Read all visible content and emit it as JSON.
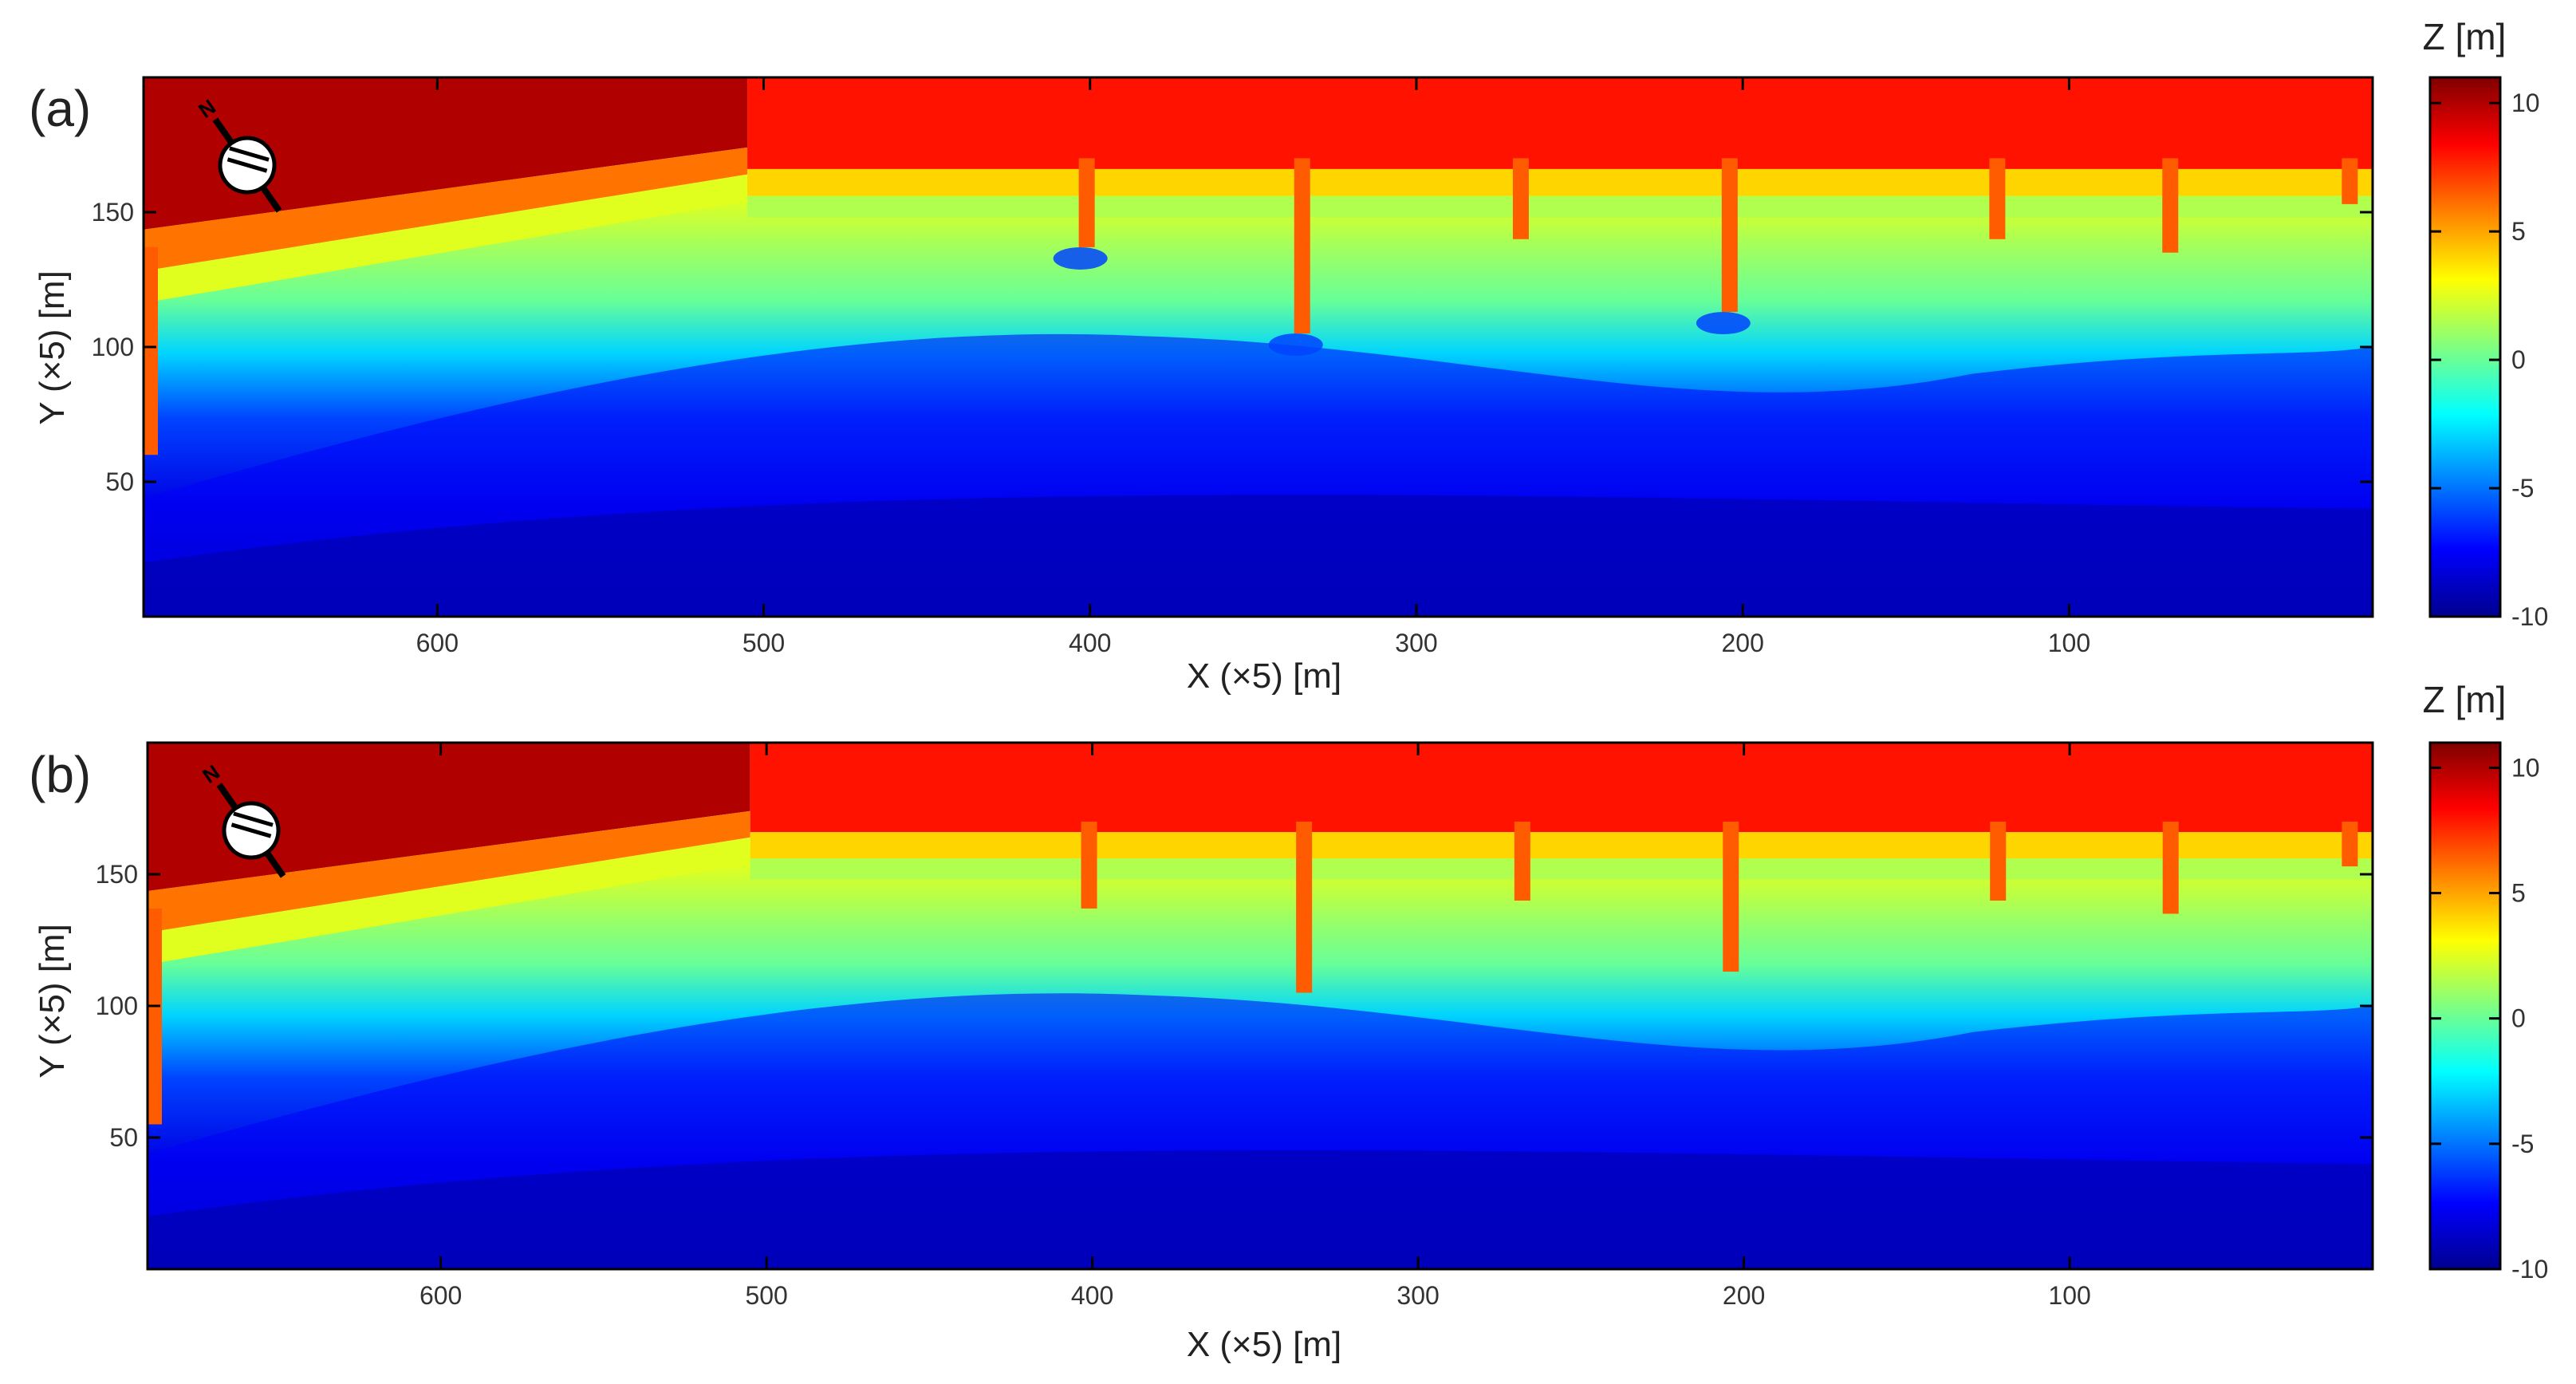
{
  "colors": {
    "colormap": [
      "#00008f",
      "#0000ff",
      "#0080ff",
      "#00ffff",
      "#80ff80",
      "#ffff00",
      "#ff8000",
      "#ff0000",
      "#800000"
    ],
    "axes": "#000000"
  },
  "icons": [
    "north-arrow-icon"
  ],
  "chart_data": [
    {
      "type": "heatmap",
      "panel_label": "(a)",
      "xlabel": "X (×5) [m]",
      "ylabel": "Y (×5) [m]",
      "xlim": [
        690,
        7
      ],
      "ylim": [
        0,
        200
      ],
      "x_reversed": true,
      "xticks": [
        600,
        500,
        400,
        300,
        200,
        100
      ],
      "yticks": [
        150,
        100,
        50
      ],
      "colorbar": {
        "title": "Z [m]",
        "range": [
          -10,
          11
        ],
        "ticks": [
          10,
          5,
          0,
          -5,
          -10
        ]
      },
      "land_boundary_x": 505,
      "land_elevation_left": 10,
      "land_elevation_right": 8,
      "groins_x_ytip": [
        [
          401,
          137
        ],
        [
          335,
          105
        ],
        [
          268,
          140
        ],
        [
          204,
          113
        ],
        [
          122,
          140
        ],
        [
          69,
          135
        ],
        [
          14,
          153
        ]
      ],
      "left_edge_structure_ytip": 60,
      "depressions_near_groins_x": [
        401,
        335,
        204
      ],
      "approx_zones_y": {
        "shoreline": 160,
        "zero_contour": 125,
        "minus5_contour": 85,
        "offshore_min": -10
      }
    },
    {
      "type": "heatmap",
      "panel_label": "(b)",
      "xlabel": "X (×5) [m]",
      "ylabel": "Y (×5) [m]",
      "xlim": [
        690,
        7
      ],
      "ylim": [
        0,
        200
      ],
      "x_reversed": true,
      "xticks": [
        600,
        500,
        400,
        300,
        200,
        100
      ],
      "yticks": [
        150,
        100,
        50
      ],
      "colorbar": {
        "title": "Z [m]",
        "range": [
          -10,
          11
        ],
        "ticks": [
          10,
          5,
          0,
          -5,
          -10
        ]
      },
      "land_boundary_x": 505,
      "land_elevation_left": 10,
      "land_elevation_right": 8,
      "groins_x_ytip": [
        [
          401,
          137
        ],
        [
          335,
          105
        ],
        [
          268,
          140
        ],
        [
          204,
          113
        ],
        [
          122,
          140
        ],
        [
          69,
          135
        ],
        [
          14,
          153
        ]
      ],
      "left_edge_structure_ytip": 55,
      "depressions_near_groins_x": [],
      "approx_zones_y": {
        "shoreline": 158,
        "zero_contour": 128,
        "minus5_contour": 90,
        "offshore_min": -10
      }
    }
  ]
}
